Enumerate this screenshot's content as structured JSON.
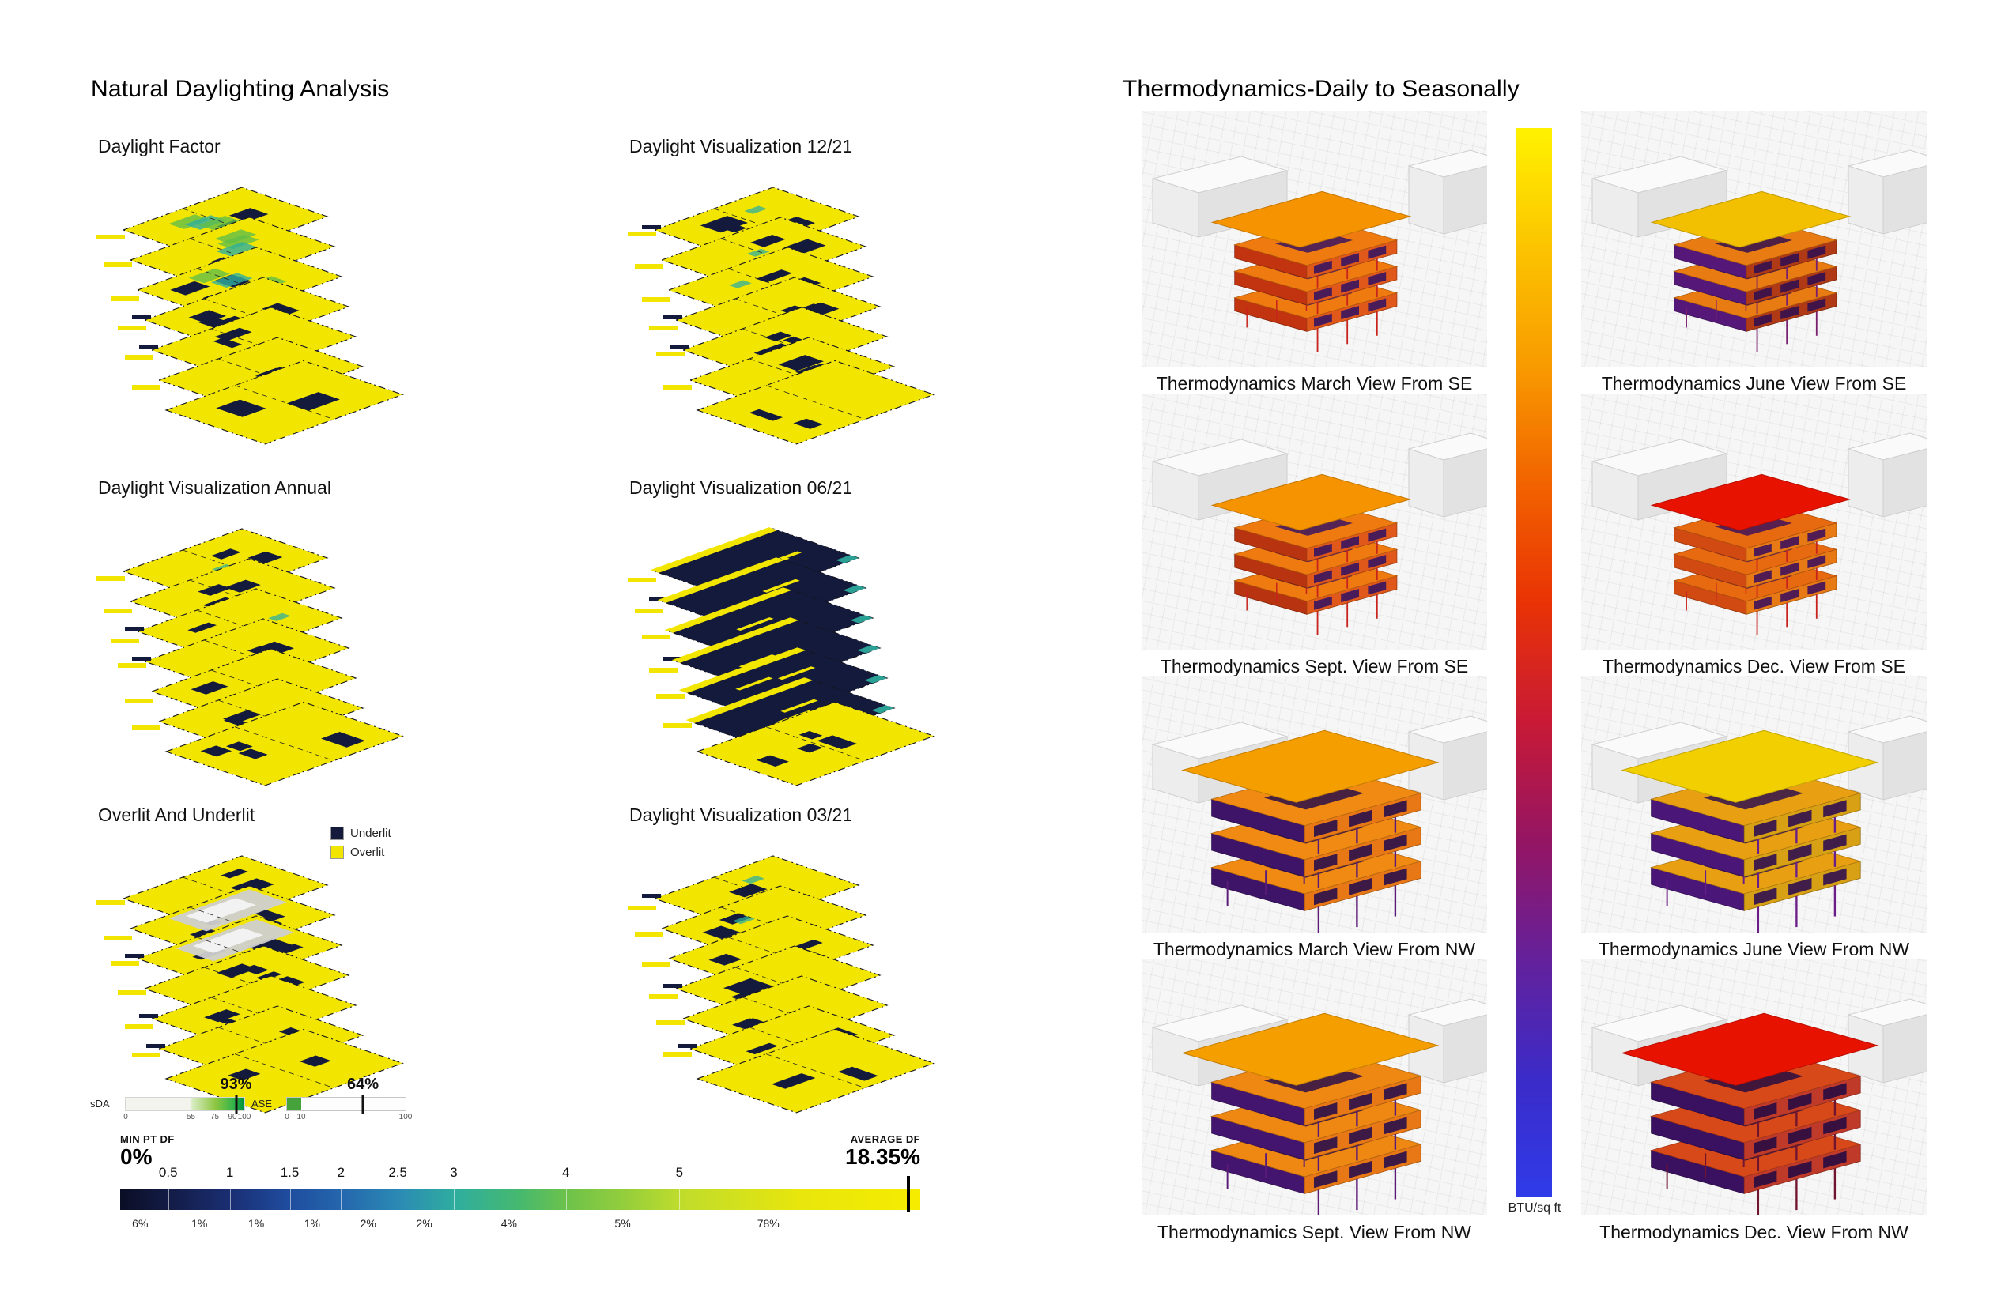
{
  "daylighting": {
    "title": "Natural Daylighting Analysis",
    "panels": [
      {
        "label": "Daylight Factor",
        "type": "factor",
        "seed": 11
      },
      {
        "label": "Daylight Visualization 12/21",
        "type": "viz1221",
        "seed": 23
      },
      {
        "label": "Daylight Visualization Annual",
        "type": "annual",
        "seed": 37
      },
      {
        "label": "Daylight Visualization 06/21",
        "type": "viz0621",
        "seed": 41
      },
      {
        "label": "Overlit And Underlit",
        "type": "overlit",
        "seed": 53,
        "legend": [
          {
            "label": "Underlit",
            "color": "#131A3C"
          },
          {
            "label": "Overlit",
            "color": "#F2E600"
          }
        ]
      },
      {
        "label": "Daylight Visualization 03/21",
        "type": "viz0321",
        "seed": 67
      }
    ],
    "sda": {
      "label": "sDA",
      "value": 93,
      "value_label": "93%",
      "ticks": [
        {
          "label": "0",
          "pos": 0
        },
        {
          "label": "55",
          "pos": 0.55
        },
        {
          "label": "75",
          "pos": 0.75
        },
        {
          "label": "90",
          "pos": 0.9
        },
        {
          "label": "100",
          "pos": 1
        }
      ]
    },
    "ase": {
      "label": "ASE",
      "value": 64,
      "value_label": "64%",
      "segment_width": 0.12,
      "ticks": [
        {
          "label": "0",
          "pos": 0
        },
        {
          "label": "10",
          "pos": 0.12
        },
        {
          "label": "100",
          "pos": 1
        }
      ]
    },
    "df_scale": {
      "min_label": "MIN PT DF",
      "min_value": "0%",
      "avg_label": "AVERAGE DF",
      "avg_value": "18.35%",
      "marker_pos": 0.985,
      "ticks": [
        {
          "label": "0.5",
          "pos": 0.06
        },
        {
          "label": "1",
          "pos": 0.137
        },
        {
          "label": "1.5",
          "pos": 0.212
        },
        {
          "label": "2",
          "pos": 0.276
        },
        {
          "label": "2.5",
          "pos": 0.347
        },
        {
          "label": "3",
          "pos": 0.417
        },
        {
          "label": "4",
          "pos": 0.557
        },
        {
          "label": "5",
          "pos": 0.699
        }
      ],
      "percents": [
        {
          "label": "6%",
          "pos": 0.025
        },
        {
          "label": "1%",
          "pos": 0.099
        },
        {
          "label": "1%",
          "pos": 0.17
        },
        {
          "label": "1%",
          "pos": 0.24
        },
        {
          "label": "2%",
          "pos": 0.31
        },
        {
          "label": "2%",
          "pos": 0.38
        },
        {
          "label": "4%",
          "pos": 0.486
        },
        {
          "label": "5%",
          "pos": 0.628
        },
        {
          "label": "78%",
          "pos": 0.81
        }
      ]
    },
    "palette": {
      "yellow": "#F2E600",
      "navy": "#131A3C",
      "teal": "#2FAF9E",
      "green": "#62BE4A",
      "gray": "#CFCFCF"
    }
  },
  "thermo": {
    "title": "Thermodynamics-Daily to Seasonally",
    "colorbar_label": "BTU/sq ft",
    "colorbar_stops": [
      "#FFF200",
      "#FCC400",
      "#F89B00",
      "#F26300",
      "#E93305",
      "#C81A36",
      "#951563",
      "#64219B",
      "#3B2BC8",
      "#2F3BE8"
    ],
    "tiles": [
      {
        "caption": "Thermodynamics March View From SE",
        "view": "SE",
        "colors": {
          "roof": "#F59300",
          "top": "#EE7A10",
          "front": "#C2330F",
          "side": "#E0581A",
          "inner": "#3A1560",
          "legs": "#C8241E"
        }
      },
      {
        "caption": "Thermodynamics June View From SE",
        "view": "SE",
        "colors": {
          "roof": "#F2C000",
          "top": "#E87C12",
          "front": "#551878",
          "side": "#B03A16",
          "inner": "#34104F",
          "legs": "#7A1E6E"
        }
      },
      {
        "caption": "Thermodynamics Sept. View From SE",
        "view": "SE",
        "colors": {
          "roof": "#F59300",
          "top": "#EE7A10",
          "front": "#B8330F",
          "side": "#E0581A",
          "inner": "#3A1560",
          "legs": "#C8241E"
        }
      },
      {
        "caption": "Thermodynamics Dec. View From SE",
        "view": "SE",
        "colors": {
          "roof": "#E81200",
          "top": "#E86A10",
          "front": "#D04A12",
          "side": "#E87A16",
          "inner": "#40125A",
          "legs": "#C8241E"
        }
      },
      {
        "caption": "Thermodynamics March View From NW",
        "view": "NW",
        "colors": {
          "roof": "#F59E00",
          "top": "#F08A12",
          "front": "#3E1468",
          "side": "#E87816",
          "inner": "#2A0E4A",
          "legs": "#5A1A78"
        }
      },
      {
        "caption": "Thermodynamics June View From NW",
        "view": "NW",
        "colors": {
          "roof": "#F2CF00",
          "top": "#E8A012",
          "front": "#4A1678",
          "side": "#D8A014",
          "inner": "#30104F",
          "legs": "#6A1E88"
        }
      },
      {
        "caption": "Thermodynamics Sept. View From NW",
        "view": "NW",
        "colors": {
          "roof": "#F59E00",
          "top": "#EE8812",
          "front": "#44156E",
          "side": "#E87816",
          "inner": "#2A0E4A",
          "legs": "#5A1A78"
        }
      },
      {
        "caption": "Thermodynamics Dec. View From NW",
        "view": "NW",
        "colors": {
          "roof": "#E81200",
          "top": "#D8491A",
          "front": "#3A1060",
          "side": "#C03A2A",
          "inner": "#280C42",
          "legs": "#701430"
        }
      }
    ]
  }
}
